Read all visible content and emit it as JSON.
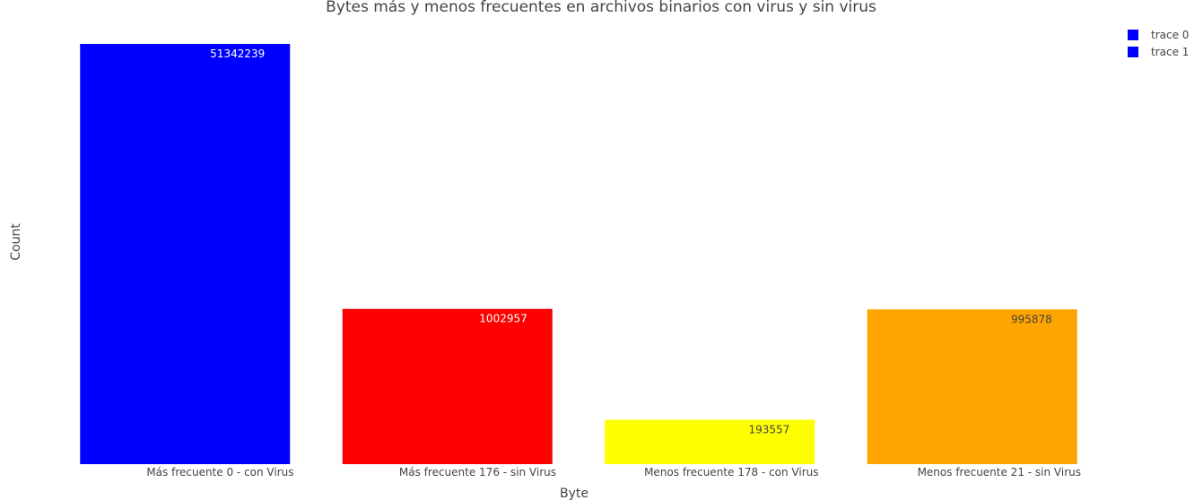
{
  "chart_data": {
    "type": "bar",
    "title": "Bytes más y menos frecuentes en archivos binarios con virus y sin virus",
    "xlabel": "Byte",
    "ylabel": "Count",
    "categories": [
      "Más frecuente 0 - con Virus",
      "Más frecuente 176 - sin Virus",
      "Menos frecuente 178 - con Virus",
      "Menos frecuente 21 - sin Virus"
    ],
    "values": [
      51342239,
      1002957,
      193557,
      995878
    ],
    "value_labels": [
      "51342239",
      "1002957",
      "193557",
      "995878"
    ],
    "bar_colors": [
      "#0000ff",
      "#ff0000",
      "#ffff00",
      "#ffa500"
    ],
    "label_colors": [
      "#ffffff",
      "#ffffff",
      "#444444",
      "#444444"
    ],
    "y_scale": "log",
    "ylim": [
      100000,
      51342239
    ],
    "grid": false,
    "legend_position": "top-right",
    "legend": [
      {
        "name": "trace 0",
        "color": "#0000ff"
      },
      {
        "name": "trace 1",
        "color": "#0000ff"
      }
    ]
  }
}
